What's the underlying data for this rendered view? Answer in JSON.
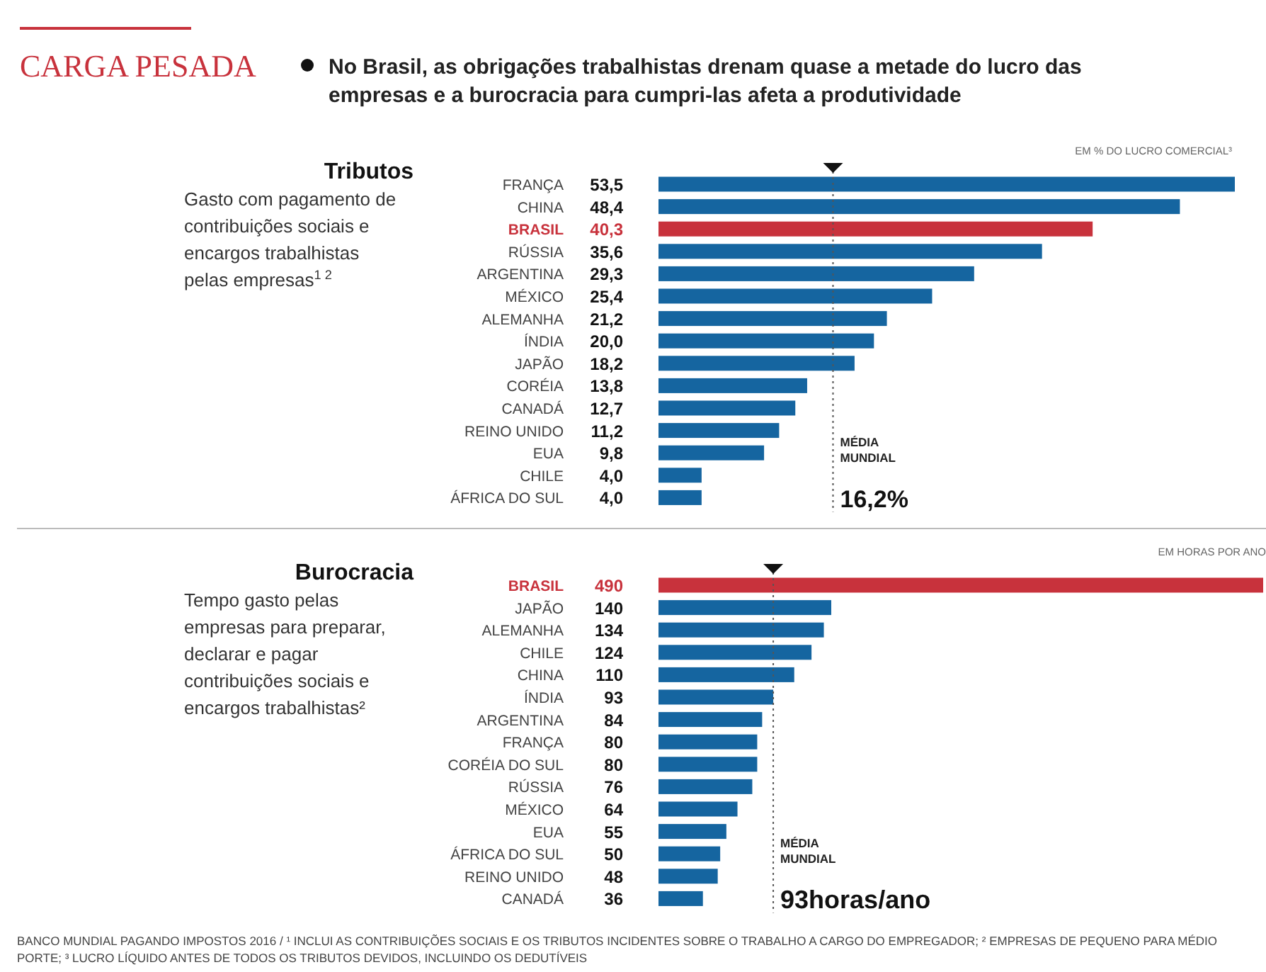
{
  "chart_data": [
    {
      "type": "other",
      "title": "CARGA PESADA",
      "subtitle": "No Brasil, as obrigações trabalhistas drenam quase a metade do lucro das empresas e a burocracia para cumpri-las afeta a produtividade"
    },
    {
      "type": "bar",
      "orientation": "horizontal",
      "title": "Tributos",
      "subtitle": "Gasto com pagamento de contribuições sociais e encargos trabalhistas pelas empresas$^{1 2}$",
      "xlabel": "EM % DO LUCRO COMERCIAL³",
      "categories": [
        "FRANÇA",
        "CHINA",
        "BRASIL",
        "RÚSSIA",
        "ARGENTINA",
        "MÉXICO",
        "ALEMANHA",
        "ÍNDIA",
        "JAPÃO",
        "CORÉIA",
        "CANADÁ",
        "REINO UNIDO",
        "EUA",
        "CHILE",
        "ÁFRICA DO SUL"
      ],
      "values": [
        53.5,
        48.4,
        40.3,
        35.6,
        29.3,
        25.4,
        21.2,
        20.0,
        18.2,
        13.8,
        12.7,
        11.2,
        9.8,
        4.0,
        4.0
      ],
      "value_labels": [
        "53,5",
        "48,4",
        "40,3",
        "35,6",
        "29,3",
        "25,4",
        "21,2",
        "20,0",
        "18,2",
        "13,8",
        "12,7",
        "11,2",
        "9,8",
        "4,0",
        "4,0"
      ],
      "colors": [
        "#1565a0",
        "#1565a0",
        "#c8323c",
        "#1565a0",
        "#1565a0",
        "#1565a0",
        "#1565a0",
        "#1565a0",
        "#1565a0",
        "#1565a0",
        "#1565a0",
        "#1565a0",
        "#1565a0",
        "#1565a0",
        "#1565a0"
      ],
      "ref_lines": [
        {
          "axis": "x",
          "value": 16.2,
          "label": "MÉDIA MUNDIAL",
          "line_style": "dotted",
          "color": "#555555"
        }
      ],
      "annotations": [
        "16,2%"
      ]
    },
    {
      "type": "bar",
      "orientation": "horizontal",
      "title": "Burocracia",
      "subtitle": "Tempo gasto pelas empresas para preparar, declarar e pagar contribuições sociais e encargos trabalhistas²",
      "xlabel": "EM HORAS POR ANO",
      "categories": [
        "BRASIL",
        "JAPÃO",
        "ALEMANHA",
        "CHILE",
        "CHINA",
        "ÍNDIA",
        "ARGENTINA",
        "FRANÇA",
        "CORÉIA DO SUL",
        "RÚSSIA",
        "MÉXICO",
        "EUA",
        "ÁFRICA DO SUL",
        "REINO UNIDO",
        "CANADÁ"
      ],
      "values": [
        490,
        140,
        134,
        124,
        110,
        93,
        84,
        80,
        80,
        76,
        64,
        55,
        50,
        48,
        36
      ],
      "data_labels": true,
      "colors": [
        "#c8323c",
        "#1565a0",
        "#1565a0",
        "#1565a0",
        "#1565a0",
        "#1565a0",
        "#1565a0",
        "#1565a0",
        "#1565a0",
        "#1565a0",
        "#1565a0",
        "#1565a0",
        "#1565a0",
        "#1565a0",
        "#1565a0"
      ],
      "ref_lines": [
        {
          "axis": "x",
          "value": 93,
          "label": "MÉDIA MUNDIAL",
          "line_style": "dotted",
          "color": "#555555"
        }
      ],
      "annotations": [
        "93horas/ano",
        "BANCO MUNDIAL PAGANDO IMPOSTOS 2016 / ¹ INCLUI AS CONTRIBUIÇÕES SOCIAIS E OS TRIBUTOS INCIDENTES SOBRE O TRABALHO A CARGO DO EMPREGADOR; ² EMPRESAS DE PEQUENO PARA MÉDIO PORTE; ³ LUCRO LÍQUIDO ANTES DE TODOS OS TRIBUTOS DEVIDOS, INCLUINDO OS DEDUTÍVEIS"
      ]
    }
  ]
}
